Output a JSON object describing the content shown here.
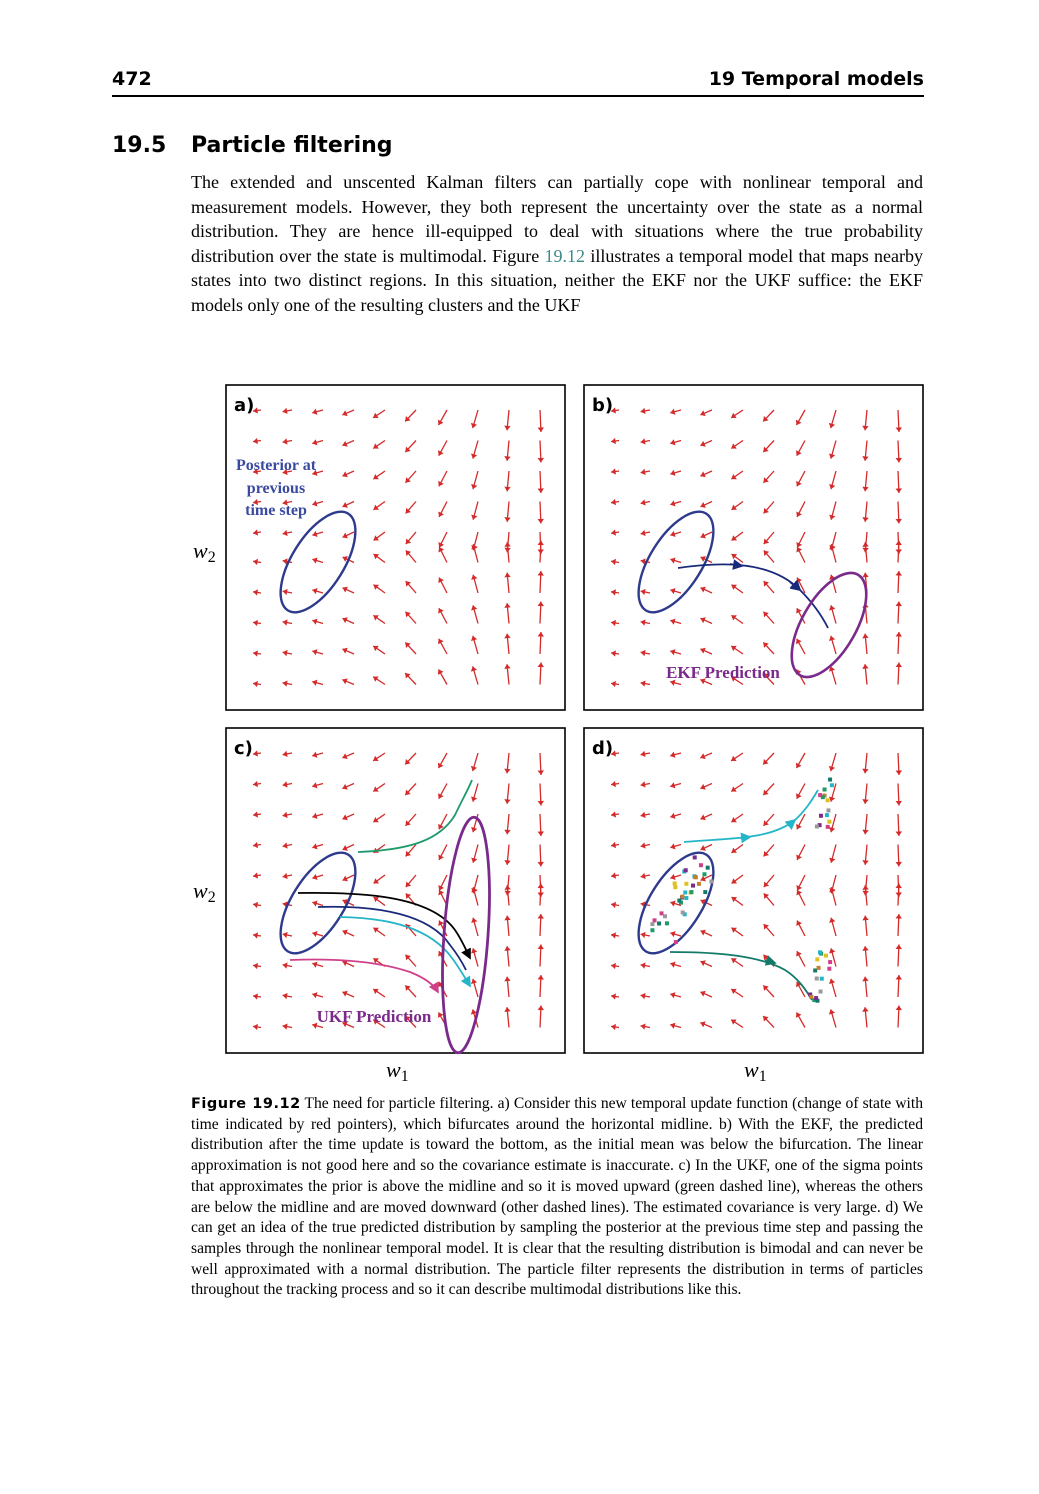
{
  "header": {
    "page_number": "472",
    "running_head": "19 Temporal models"
  },
  "section": {
    "number": "19.5",
    "title": "Particle filtering"
  },
  "intro": {
    "part1": "The extended and unscented Kalman filters can partially cope with nonlinear temporal and measurement models. However, they both represent the uncertainty over the state as a normal distribution. They are hence ill-equipped to deal with situations where the true probability distribution over the state is multimodal. Figure ",
    "ref": "19.12",
    "part2": " illustrates a temporal model that maps nearby states into two distinct regions. In this situation, neither the EKF nor the UKF suffice: the EKF models only one of the resulting clusters and the UKF"
  },
  "figure": {
    "panels": [
      {
        "label": "a)"
      },
      {
        "label": "b)"
      },
      {
        "label": "c)"
      },
      {
        "label": "d)"
      }
    ],
    "annotations": {
      "posterior_line1": "Posterior at",
      "posterior_line2": "previous",
      "posterior_line3": "time step",
      "ekf_prediction": "EKF Prediction",
      "ukf_prediction": "UKF Prediction"
    },
    "axes": {
      "x_label": "w",
      "x_sub": "1",
      "y_label": "w",
      "y_sub": "2"
    },
    "colors": {
      "arrow": "#d42a2a",
      "ellipse_blue": "#2e3a8c",
      "ellipse_purple": "#7a2a8a",
      "path_green": "#1f9a6a",
      "path_cyan": "#25b5c8",
      "path_magenta": "#d0408a",
      "path_black": "#000000",
      "path_navy": "#1a2a7a",
      "path_teal": "#137a6a",
      "annotation_blue": "#3a4aa0",
      "annotation_purple": "#7a2a8a"
    }
  },
  "caption": {
    "label": "Figure 19.12",
    "text": " The need for particle filtering. a) Consider this new temporal update function (change of state with time indicated by red pointers), which bifurcates around the horizontal midline. b) With the EKF, the predicted distribution after the time update is toward the bottom, as the initial mean was below the bifurcation. The linear approximation is not good here and so the covariance estimate is inaccurate. c) In the UKF, one of the sigma points that approximates the prior is above the midline and so it is moved upward (green dashed line), whereas the others are below the midline and are moved downward (other dashed lines). The estimated covariance is very large. d) We can get an idea of the true predicted distribution by sampling the posterior at the previous time step and passing the samples through the nonlinear temporal model. It is clear that the resulting distribution is bimodal and can never be well approximated with a normal distribution. The particle filter represents the distribution in terms of particles throughout the tracking process and so it can describe multimodal distributions like this."
  }
}
